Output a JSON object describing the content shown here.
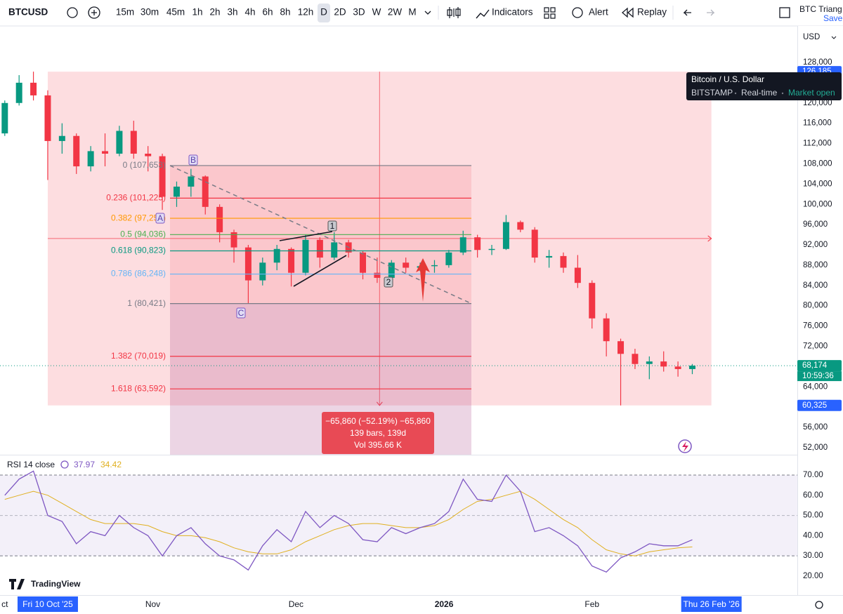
{
  "toolbar": {
    "symbol": "BTCUSD",
    "intervals": [
      "15m",
      "30m",
      "45m",
      "1h",
      "2h",
      "3h",
      "4h",
      "6h",
      "8h",
      "12h",
      "D",
      "2D",
      "3D",
      "W",
      "2W",
      "M"
    ],
    "active_interval": "D",
    "indicators": "Indicators",
    "alert": "Alert",
    "replay": "Replay",
    "layout_name": "BTC Triang",
    "save": "Save"
  },
  "tooltip": {
    "title": "Bitcoin / U.S. Dollar",
    "exchange": "BITSTAMP",
    "feed": "Real-time",
    "status": "Market open"
  },
  "branding": "TradingView",
  "chart_data": [
    {
      "type": "candlestick",
      "currency": "USD",
      "x": [
        "2025-10-01",
        "2025-10-04",
        "2025-10-07",
        "2025-10-10",
        "2025-10-13",
        "2025-10-16",
        "2025-10-19",
        "2025-10-22",
        "2025-10-25",
        "2025-10-28",
        "2025-10-31",
        "2025-11-03",
        "2025-11-06",
        "2025-11-09",
        "2025-11-12",
        "2025-11-15",
        "2025-11-18",
        "2025-11-21",
        "2025-11-24",
        "2025-11-27",
        "2025-11-30",
        "2025-12-03",
        "2025-12-06",
        "2025-12-09",
        "2025-12-12",
        "2025-12-15",
        "2025-12-18",
        "2025-12-21",
        "2025-12-24",
        "2025-12-27",
        "2025-12-30",
        "2026-01-02",
        "2026-01-05",
        "2026-01-08",
        "2026-01-11",
        "2026-01-14",
        "2026-01-17",
        "2026-01-20",
        "2026-01-23",
        "2026-01-26",
        "2026-01-29",
        "2026-02-01",
        "2026-02-04",
        "2026-02-07",
        "2026-02-10",
        "2026-02-13",
        "2026-02-16",
        "2026-02-19",
        "2026-02-22"
      ],
      "open": [
        114000,
        120000,
        124000,
        121500,
        112500,
        113500,
        107500,
        110500,
        110000,
        114500,
        110000,
        109500,
        101500,
        103500,
        105500,
        99500,
        94500,
        91500,
        85000,
        88500,
        91200,
        86500,
        93000,
        89500,
        92500,
        90500,
        86500,
        85500,
        88500,
        87500,
        87800,
        88000,
        90500,
        93500,
        91000,
        91200,
        96500,
        95000,
        89500,
        89800,
        87500,
        84500,
        77500,
        73000,
        70500,
        68500,
        69000,
        68000,
        67500
      ],
      "high": [
        120500,
        125500,
        126185,
        122500,
        116000,
        114000,
        111500,
        114000,
        115500,
        116500,
        111500,
        110000,
        104500,
        107000,
        105700,
        100000,
        95000,
        92000,
        89500,
        92000,
        91500,
        94000,
        93500,
        94500,
        93000,
        90800,
        89500,
        89000,
        89500,
        88500,
        89000,
        91000,
        94800,
        94000,
        92000,
        97900,
        96800,
        95500,
        91000,
        90500,
        90000,
        85000,
        78500,
        73500,
        71500,
        70000,
        71000,
        69000,
        68500
      ],
      "low": [
        113500,
        119500,
        120500,
        104800,
        110000,
        106000,
        106500,
        107500,
        109500,
        109000,
        106500,
        98900,
        99500,
        101500,
        98000,
        92500,
        88500,
        80500,
        84000,
        87000,
        83800,
        86000,
        87500,
        89000,
        89500,
        85200,
        84500,
        85000,
        86500,
        86800,
        86500,
        87500,
        90000,
        89500,
        90000,
        91000,
        94500,
        88500,
        87500,
        86500,
        83500,
        75500,
        70000,
        60325,
        67500,
        65500,
        67000,
        66000,
        66500
      ],
      "close": [
        120000,
        124000,
        121500,
        112500,
        113500,
        107500,
        110500,
        110000,
        114500,
        110000,
        109500,
        101500,
        103500,
        105500,
        99500,
        94500,
        91500,
        85000,
        88500,
        91200,
        86500,
        93000,
        89500,
        92500,
        90500,
        86500,
        85500,
        88500,
        87500,
        87800,
        88000,
        90500,
        93500,
        91000,
        91200,
        96500,
        95000,
        89500,
        89800,
        87500,
        84500,
        77500,
        73000,
        70500,
        68500,
        69000,
        68000,
        67500,
        68174
      ],
      "up_color": "#089981",
      "down_color": "#f23645",
      "xlim": [
        "2025-09-30",
        "2026-03-16"
      ],
      "xticks": [
        {
          "value": "2025-10-01",
          "label": "ct"
        },
        {
          "value": "2025-11-01",
          "label": "Nov"
        },
        {
          "value": "2025-12-01",
          "label": "Dec"
        },
        {
          "value": "2026-01-01",
          "label": "2026"
        },
        {
          "value": "2026-02-01",
          "label": "Feb"
        }
      ],
      "xhighlights": [
        {
          "value": "2025-10-10",
          "label": "Fri 10 Oct '25"
        },
        {
          "value": "2026-02-26",
          "label": "Thu 26 Feb '26"
        }
      ],
      "ylim": [
        50600,
        135200
      ],
      "yticks": [
        {
          "value": 52000,
          "label": "52,000"
        },
        {
          "value": 56000,
          "label": "56,000"
        },
        {
          "value": 60000,
          "label": "60,000"
        },
        {
          "value": 64000,
          "label": "64,000"
        },
        {
          "value": 68000,
          "label": "68,000"
        },
        {
          "value": 72000,
          "label": "72,000"
        },
        {
          "value": 76000,
          "label": "76,000"
        },
        {
          "value": 80000,
          "label": "80,000"
        },
        {
          "value": 84000,
          "label": "84,000"
        },
        {
          "value": 88000,
          "label": "88,000"
        },
        {
          "value": 92000,
          "label": "92,000"
        },
        {
          "value": 96000,
          "label": "96,000"
        },
        {
          "value": 100000,
          "label": "100,000"
        },
        {
          "value": 104000,
          "label": "104,000"
        },
        {
          "value": 108000,
          "label": "108,000"
        },
        {
          "value": 112000,
          "label": "112,000"
        },
        {
          "value": 116000,
          "label": "116,000"
        },
        {
          "value": 120000,
          "label": "120,000"
        },
        {
          "value": 124000,
          "label": "124,000"
        },
        {
          "value": 128000,
          "label": "128,000"
        }
      ],
      "price_tags": [
        {
          "value": 126185,
          "label": "126,185",
          "color": "#2962ff"
        },
        {
          "value": 68174,
          "label": "68,174",
          "color": "#089981"
        },
        {
          "value": 60325,
          "label": "60,325",
          "color": "#2962ff"
        }
      ],
      "countdown": "10:59:36",
      "fib_levels": [
        {
          "value": 107653,
          "label": "0 (107,653)",
          "color": "#787b86"
        },
        {
          "value": 101225,
          "label": "0.236 (101,225)",
          "color": "#f23645"
        },
        {
          "value": 97250,
          "label": "0.382 (97,250)",
          "color": "#ff9800"
        },
        {
          "value": 94036,
          "label": "0.5 (94,036)",
          "color": "#4caf50"
        },
        {
          "value": 90823,
          "label": "0.618 (90,823)",
          "color": "#089981"
        },
        {
          "value": 86248,
          "label": "0.786 (86,248)",
          "color": "#64b5f6"
        },
        {
          "value": 80421,
          "label": "1 (80,421)",
          "color": "#787b86"
        },
        {
          "value": 70019,
          "label": "1.382 (70,019)",
          "color": "#f23645"
        },
        {
          "value": 63592,
          "label": "1.618 (63,592)",
          "color": "#f23645"
        }
      ],
      "measure": [
        "−65,860 (−52.19%) −65,860",
        "139 bars, 139d",
        "Vol 395.66 K"
      ],
      "drawing_labels": [
        "A",
        "B",
        "C",
        "1",
        "2"
      ]
    },
    {
      "type": "line",
      "title": "RSI 14 close",
      "legend_values": [
        37.97,
        34.42
      ],
      "series": [
        {
          "color": "#7e57c2",
          "values": [
            60,
            68,
            72,
            50,
            47,
            36,
            42,
            40,
            50,
            44,
            40,
            30,
            40,
            44,
            36,
            30,
            28,
            23,
            35,
            43,
            37,
            52,
            44,
            50,
            46,
            38,
            37,
            44,
            41,
            44,
            46,
            52,
            68,
            58,
            57,
            70,
            62,
            42,
            44,
            40,
            35,
            25,
            22,
            29,
            32,
            36,
            35,
            35,
            37.97
          ]
        },
        {
          "color": "#e0b020",
          "values": [
            58,
            60,
            62,
            60,
            56,
            52,
            48,
            46,
            46,
            46,
            45,
            42,
            40,
            40,
            39,
            37,
            34,
            32,
            31,
            31,
            33,
            37,
            40,
            43,
            45,
            46,
            46,
            45,
            44,
            44,
            45,
            48,
            53,
            57,
            58,
            60,
            62,
            58,
            53,
            48,
            44,
            38,
            33,
            31,
            30,
            32,
            33,
            34,
            34.42
          ]
        }
      ],
      "ylim": [
        10.6,
        79.4
      ],
      "yticks": [
        {
          "value": 20,
          "label": "20.00"
        },
        {
          "value": 30,
          "label": "30.00"
        },
        {
          "value": 40,
          "label": "40.00"
        },
        {
          "value": 50,
          "label": "50.00"
        },
        {
          "value": 60,
          "label": "60.00"
        },
        {
          "value": 70,
          "label": "70.00"
        }
      ],
      "band": [
        30,
        70
      ],
      "midline": 50
    }
  ]
}
